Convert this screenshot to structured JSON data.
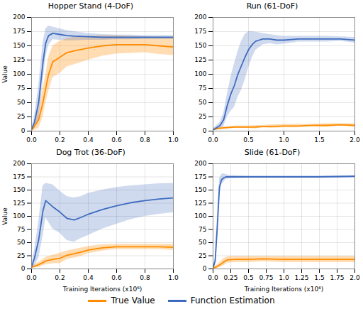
{
  "chart_data": [
    {
      "type": "line",
      "title": "Hopper Stand (4-DoF)",
      "ylabel": "Value",
      "grid": true,
      "legend": "bottom",
      "xlim": [
        0,
        1.0
      ],
      "ylim": [
        0,
        200
      ],
      "xticks": [
        {
          "value": 0.0,
          "label": "0.0"
        },
        0.2,
        0.4,
        0.6,
        0.8,
        {
          "value": 1.0,
          "label": "1.0"
        }
      ],
      "yticks": [
        0,
        25,
        50,
        75,
        100,
        125,
        150,
        175,
        200
      ],
      "series": [
        {
          "name": "True Value",
          "color": "#FF8C00",
          "x": [
            0.0,
            0.02,
            0.05,
            0.08,
            0.1,
            0.12,
            0.15,
            0.2,
            0.25,
            0.3,
            0.4,
            0.5,
            0.6,
            0.7,
            0.8,
            0.9,
            1.0
          ],
          "values": [
            2,
            8,
            20,
            50,
            75,
            100,
            122,
            130,
            138,
            141,
            146,
            150,
            152,
            152,
            152,
            150,
            148
          ],
          "upper": [
            4,
            14,
            35,
            75,
            100,
            130,
            150,
            158,
            163,
            165,
            167,
            168,
            168,
            167,
            166,
            165,
            163
          ],
          "lower": [
            0,
            2,
            5,
            25,
            50,
            70,
            94,
            102,
            113,
            117,
            125,
            132,
            136,
            137,
            138,
            135,
            133
          ]
        },
        {
          "name": "Function Estimation",
          "color": "#3F6BBF",
          "x": [
            0.0,
            0.02,
            0.05,
            0.08,
            0.1,
            0.12,
            0.15,
            0.2,
            0.25,
            0.3,
            0.4,
            0.5,
            0.6,
            0.7,
            0.8,
            0.9,
            1.0
          ],
          "values": [
            3,
            15,
            50,
            120,
            155,
            168,
            172,
            170,
            168,
            167,
            166,
            165,
            165,
            165,
            165,
            165,
            165
          ],
          "upper": [
            5,
            25,
            80,
            155,
            180,
            185,
            183,
            180,
            177,
            175,
            172,
            170,
            169,
            169,
            168,
            168,
            168
          ],
          "lower": [
            1,
            5,
            20,
            85,
            130,
            151,
            161,
            160,
            159,
            159,
            160,
            160,
            161,
            161,
            162,
            162,
            162
          ]
        }
      ]
    },
    {
      "type": "line",
      "title": "Run (61-DoF)",
      "grid": true,
      "legend": "bottom",
      "xlim": [
        0,
        2.0
      ],
      "ylim": [
        0,
        200
      ],
      "xticks": [
        {
          "value": 0.0,
          "label": "0.0"
        },
        0.5,
        {
          "value": 1.0,
          "label": "1.0"
        },
        1.5,
        {
          "value": 2.0,
          "label": "2.0"
        }
      ],
      "yticks": [
        0,
        25,
        50,
        75,
        100,
        125,
        150,
        175,
        200
      ],
      "series": [
        {
          "name": "True Value",
          "color": "#FF8C00",
          "x": [
            0.0,
            0.1,
            0.2,
            0.3,
            0.4,
            0.5,
            0.6,
            0.7,
            0.8,
            1.0,
            1.2,
            1.4,
            1.6,
            1.8,
            2.0
          ],
          "values": [
            3,
            5,
            6,
            7,
            7,
            7,
            7,
            8,
            8,
            9,
            9,
            10,
            10,
            11,
            10
          ],
          "upper": [
            5,
            7,
            8,
            9,
            9,
            9,
            10,
            10,
            11,
            12,
            12,
            12,
            13,
            13,
            13
          ],
          "lower": [
            1,
            3,
            4,
            5,
            5,
            5,
            4,
            6,
            5,
            6,
            6,
            8,
            7,
            9,
            7
          ]
        },
        {
          "name": "Function Estimation",
          "color": "#3F6BBF",
          "x": [
            0.0,
            0.1,
            0.15,
            0.2,
            0.25,
            0.3,
            0.35,
            0.4,
            0.45,
            0.5,
            0.55,
            0.6,
            0.65,
            0.7,
            0.8,
            0.9,
            1.0,
            1.2,
            1.4,
            1.6,
            1.8,
            2.0
          ],
          "values": [
            2,
            10,
            20,
            45,
            65,
            80,
            100,
            115,
            130,
            143,
            152,
            158,
            160,
            162,
            162,
            160,
            160,
            162,
            162,
            162,
            162,
            160
          ],
          "upper": [
            4,
            16,
            32,
            65,
            95,
            118,
            140,
            158,
            170,
            175,
            175,
            174,
            173,
            172,
            170,
            168,
            167,
            167,
            167,
            167,
            166,
            165
          ],
          "lower": [
            0,
            4,
            8,
            25,
            35,
            42,
            60,
            72,
            90,
            111,
            129,
            142,
            147,
            152,
            154,
            152,
            153,
            157,
            157,
            157,
            158,
            155
          ]
        }
      ]
    },
    {
      "type": "line",
      "title": "Dog Trot (36-DoF)",
      "xlabel": "Training Iterations (x10⁶)",
      "ylabel": "Value",
      "grid": true,
      "legend": "bottom",
      "xlim": [
        0,
        1.0
      ],
      "ylim": [
        0,
        200
      ],
      "xticks": [
        {
          "value": 0.0,
          "label": "0.0"
        },
        0.2,
        0.4,
        0.6,
        0.8,
        {
          "value": 1.0,
          "label": "1.0"
        }
      ],
      "yticks": [
        0,
        25,
        50,
        75,
        100,
        125,
        150,
        175,
        200
      ],
      "series": [
        {
          "name": "True Value",
          "color": "#FF8C00",
          "x": [
            0.0,
            0.02,
            0.05,
            0.08,
            0.1,
            0.15,
            0.2,
            0.25,
            0.3,
            0.35,
            0.4,
            0.5,
            0.6,
            0.7,
            0.8,
            0.9,
            1.0
          ],
          "values": [
            3,
            5,
            8,
            12,
            15,
            18,
            20,
            26,
            29,
            32,
            36,
            40,
            42,
            42,
            42,
            42,
            41
          ],
          "upper": [
            5,
            8,
            13,
            18,
            22,
            26,
            30,
            34,
            37,
            40,
            43,
            46,
            47,
            47,
            47,
            47,
            47
          ],
          "lower": [
            1,
            2,
            3,
            6,
            8,
            10,
            10,
            18,
            21,
            24,
            29,
            34,
            37,
            37,
            37,
            37,
            35
          ]
        },
        {
          "name": "Function Estimation",
          "color": "#3F6BBF",
          "x": [
            0.0,
            0.02,
            0.05,
            0.08,
            0.1,
            0.15,
            0.2,
            0.25,
            0.3,
            0.35,
            0.4,
            0.5,
            0.6,
            0.7,
            0.8,
            0.9,
            1.0
          ],
          "values": [
            4,
            20,
            55,
            110,
            130,
            118,
            108,
            96,
            93,
            98,
            104,
            113,
            120,
            126,
            130,
            133,
            135
          ],
          "upper": [
            7,
            35,
            90,
            158,
            163,
            160,
            148,
            138,
            135,
            138,
            144,
            150,
            155,
            158,
            160,
            162,
            163
          ],
          "lower": [
            1,
            5,
            20,
            62,
            97,
            76,
            68,
            54,
            51,
            58,
            64,
            76,
            85,
            94,
            100,
            104,
            107
          ]
        }
      ]
    },
    {
      "type": "line",
      "title": "Slide (61-DoF)",
      "xlabel": "Training Iterations (x10⁶)",
      "grid": true,
      "legend": "bottom",
      "xlim": [
        0,
        2.0
      ],
      "ylim": [
        0,
        200
      ],
      "xticks": [
        {
          "value": 0.0,
          "label": "0.0"
        },
        0.25,
        0.5,
        0.75,
        {
          "value": 1.0,
          "label": "1.0"
        },
        1.25,
        1.5,
        1.75,
        {
          "value": 2.0,
          "label": "2.0"
        }
      ],
      "yticks": [
        0,
        25,
        50,
        75,
        100,
        125,
        150,
        175,
        200
      ],
      "series": [
        {
          "name": "True Value",
          "color": "#FF8C00",
          "x": [
            0.0,
            0.05,
            0.1,
            0.15,
            0.2,
            0.3,
            0.5,
            0.7,
            1.0,
            1.5,
            2.0
          ],
          "values": [
            2,
            4,
            8,
            13,
            17,
            18,
            18,
            19,
            18,
            18,
            18
          ],
          "upper": [
            4,
            7,
            13,
            20,
            23,
            24,
            24,
            24,
            24,
            24,
            24
          ],
          "lower": [
            0,
            1,
            3,
            6,
            11,
            12,
            12,
            14,
            12,
            12,
            12
          ]
        },
        {
          "name": "Function Estimation",
          "color": "#3F6BBF",
          "x": [
            0.0,
            0.03,
            0.06,
            0.09,
            0.12,
            0.15,
            0.18,
            0.2,
            0.25,
            0.3,
            0.5,
            0.7,
            1.0,
            1.5,
            2.0
          ],
          "values": [
            2,
            15,
            80,
            155,
            170,
            173,
            175,
            175,
            175,
            175,
            175,
            175,
            175,
            175,
            176
          ],
          "upper": [
            4,
            22,
            100,
            172,
            180,
            181,
            180,
            179,
            178,
            178,
            177,
            177,
            177,
            177,
            178
          ],
          "lower": [
            0,
            8,
            60,
            138,
            160,
            165,
            170,
            171,
            172,
            172,
            173,
            173,
            173,
            173,
            174
          ]
        }
      ]
    }
  ]
}
